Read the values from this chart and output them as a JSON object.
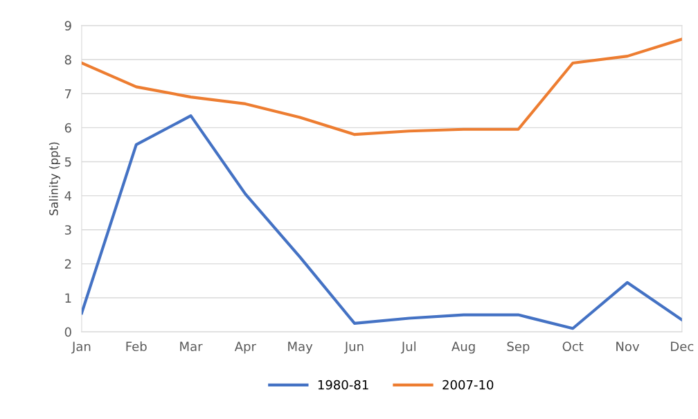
{
  "chart_data": {
    "type": "line",
    "ylabel": "Salinity (ppt)",
    "categories": [
      "Jan",
      "Feb",
      "Mar",
      "Apr",
      "May",
      "Jun",
      "Jul",
      "Aug",
      "Sep",
      "Oct",
      "Nov",
      "Dec"
    ],
    "series": [
      {
        "name": "1980-81",
        "color": "#4472c4",
        "values": [
          0.55,
          5.5,
          6.35,
          4.05,
          2.2,
          0.25,
          0.4,
          0.5,
          0.5,
          0.1,
          1.45,
          0.35
        ]
      },
      {
        "name": "2007-10",
        "color": "#ed7d31",
        "values": [
          7.9,
          7.2,
          6.9,
          6.7,
          6.3,
          5.8,
          5.9,
          5.95,
          5.95,
          7.9,
          8.1,
          8.6
        ]
      }
    ],
    "ylim": [
      0,
      9
    ],
    "yticks": [
      0,
      1,
      2,
      3,
      4,
      5,
      6,
      7,
      8,
      9
    ],
    "grid": "y",
    "legend": "bottom",
    "marker": "none",
    "line_style": "solid"
  }
}
